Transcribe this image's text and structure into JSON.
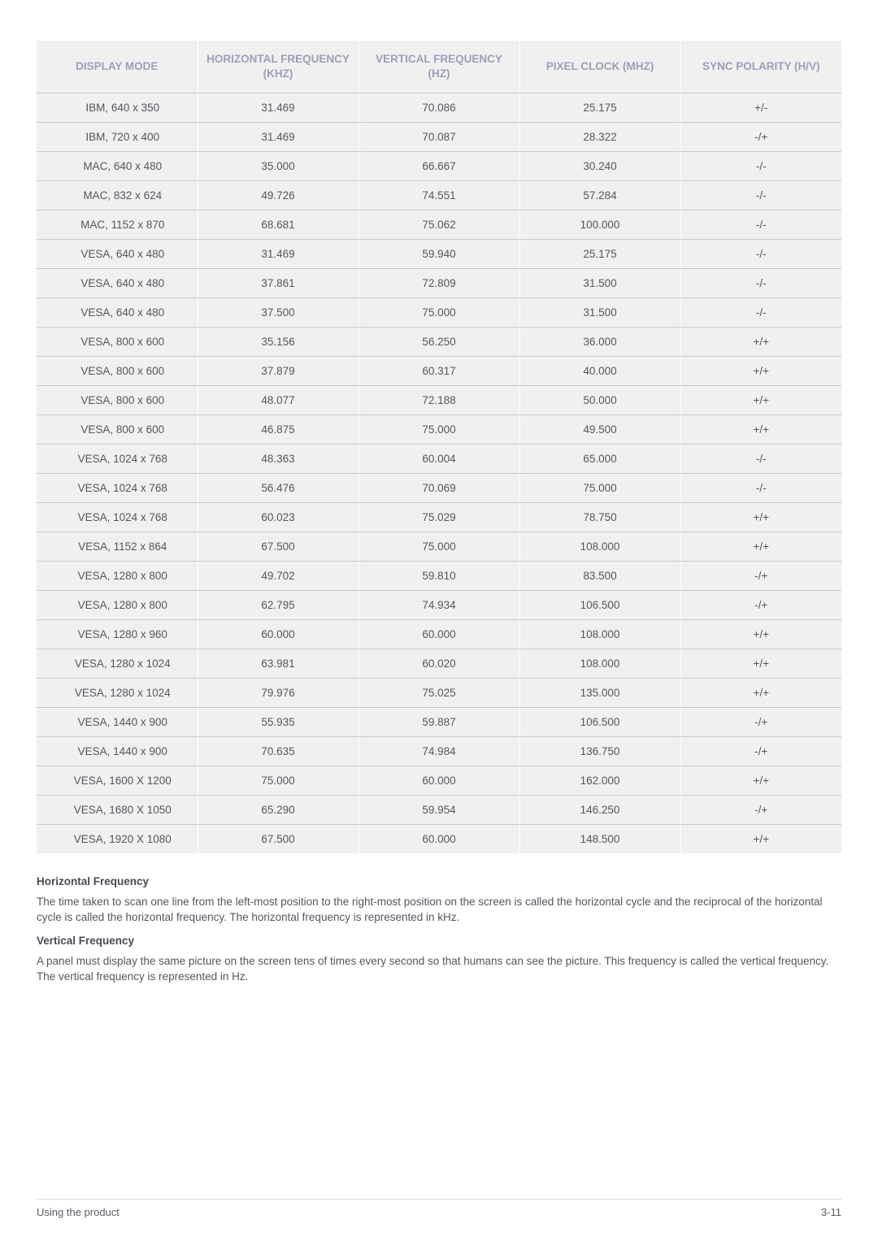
{
  "table": {
    "columns": [
      "DISPLAY MODE",
      "HORIZONTAL FREQUENCY (KHZ)",
      "VERTICAL FREQUENCY (HZ)",
      "PIXEL CLOCK (MHZ)",
      "SYNC POLARITY (H/V)"
    ],
    "rows": [
      [
        "IBM, 640 x 350",
        "31.469",
        "70.086",
        "25.175",
        "+/-"
      ],
      [
        "IBM, 720 x 400",
        "31.469",
        "70.087",
        "28.322",
        "-/+"
      ],
      [
        "MAC, 640 x 480",
        "35.000",
        "66.667",
        "30.240",
        "-/-"
      ],
      [
        "MAC, 832 x 624",
        "49.726",
        "74.551",
        "57.284",
        "-/-"
      ],
      [
        "MAC, 1152 x 870",
        "68.681",
        "75.062",
        "100.000",
        "-/-"
      ],
      [
        "VESA, 640 x 480",
        "31.469",
        "59.940",
        "25.175",
        "-/-"
      ],
      [
        "VESA, 640 x 480",
        "37.861",
        "72.809",
        "31.500",
        "-/-"
      ],
      [
        "VESA, 640 x 480",
        "37.500",
        "75.000",
        "31.500",
        "-/-"
      ],
      [
        "VESA, 800 x 600",
        "35.156",
        "56.250",
        "36.000",
        "+/+"
      ],
      [
        "VESA, 800 x 600",
        "37.879",
        "60.317",
        "40.000",
        "+/+"
      ],
      [
        "VESA, 800 x 600",
        "48.077",
        "72.188",
        "50.000",
        "+/+"
      ],
      [
        "VESA, 800 x 600",
        "46.875",
        "75.000",
        "49.500",
        "+/+"
      ],
      [
        "VESA, 1024 x 768",
        "48.363",
        "60.004",
        "65.000",
        "-/-"
      ],
      [
        "VESA, 1024 x 768",
        "56.476",
        "70.069",
        "75.000",
        "-/-"
      ],
      [
        "VESA, 1024 x 768",
        "60.023",
        "75.029",
        "78.750",
        "+/+"
      ],
      [
        "VESA, 1152 x 864",
        "67.500",
        "75.000",
        "108.000",
        "+/+"
      ],
      [
        "VESA, 1280 x 800",
        "49.702",
        "59.810",
        "83.500",
        "-/+"
      ],
      [
        "VESA, 1280 x 800",
        "62.795",
        "74.934",
        "106.500",
        "-/+"
      ],
      [
        "VESA, 1280 x 960",
        "60.000",
        "60.000",
        "108.000",
        "+/+"
      ],
      [
        "VESA, 1280 x 1024",
        "63.981",
        "60.020",
        "108.000",
        "+/+"
      ],
      [
        "VESA, 1280 x 1024",
        "79.976",
        "75.025",
        "135.000",
        "+/+"
      ],
      [
        "VESA, 1440 x 900",
        "55.935",
        "59.887",
        "106.500",
        "-/+"
      ],
      [
        "VESA, 1440 x 900",
        "70.635",
        "74.984",
        "136.750",
        "-/+"
      ],
      [
        "VESA, 1600 X 1200",
        "75.000",
        "60.000",
        "162.000",
        "+/+"
      ],
      [
        "VESA, 1680 X 1050",
        "65.290",
        "59.954",
        "146.250",
        "-/+"
      ],
      [
        "VESA, 1920 X 1080",
        "67.500",
        "60.000",
        "148.500",
        "+/+"
      ]
    ],
    "header_bg": "#f0f0f0",
    "header_color": "#9aa0b8",
    "cell_bg": "#f0f0f0",
    "cell_color": "#555560",
    "border_color": "#c8c8d0",
    "font_size": 13.5
  },
  "notes": {
    "h1_title": "Horizontal Frequency",
    "h1_body": "The time taken to scan one line from the left-most position to the right-most position on the screen is called the horizontal cycle and the reciprocal of the horizontal cycle is called the horizontal frequency. The horizontal frequency is represented in kHz.",
    "v1_title": "Vertical Frequency",
    "v1_body": "A panel must display the same picture on the screen tens of times every second so that humans can see the picture. This frequency is called the vertical frequency. The vertical frequency is represented in Hz."
  },
  "footer": {
    "left": "Using the product",
    "right": "3-11"
  }
}
